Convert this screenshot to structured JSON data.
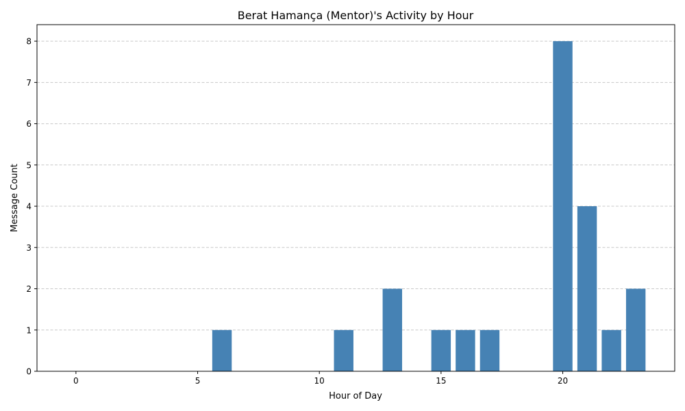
{
  "chart_data": {
    "type": "bar",
    "title": "Berat Hamança (Mentor)'s Activity by Hour",
    "xlabel": "Hour of Day",
    "ylabel": "Message Count",
    "x": [
      6,
      11,
      13,
      15,
      16,
      17,
      20,
      21,
      22,
      23
    ],
    "values": [
      1,
      1,
      2,
      1,
      1,
      1,
      8,
      4,
      1,
      2
    ],
    "xlim": [
      -1.6,
      24.6
    ],
    "ylim": [
      0,
      8.4
    ],
    "xticks": [
      0,
      5,
      10,
      15,
      20
    ],
    "yticks": [
      0,
      1,
      2,
      3,
      4,
      5,
      6,
      7,
      8
    ],
    "grid": "y-dashed",
    "bar_color": "#4682b4",
    "grid_color": "#c8c8c8"
  }
}
